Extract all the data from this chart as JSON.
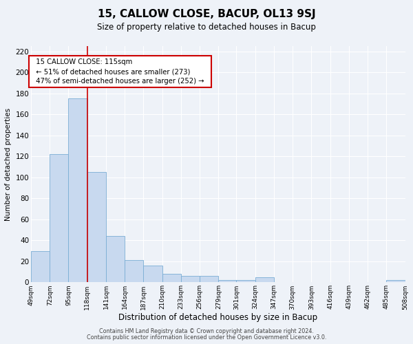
{
  "title": "15, CALLOW CLOSE, BACUP, OL13 9SJ",
  "subtitle": "Size of property relative to detached houses in Bacup",
  "xlabel": "Distribution of detached houses by size in Bacup",
  "ylabel": "Number of detached properties",
  "bar_values": [
    30,
    122,
    175,
    105,
    44,
    21,
    16,
    8,
    6,
    6,
    2,
    2,
    5,
    0,
    0,
    0,
    0,
    0,
    0,
    2,
    0
  ],
  "bin_edges": [
    49,
    72,
    95,
    118,
    141,
    164,
    187,
    210,
    233,
    256,
    279,
    301,
    324,
    347,
    370,
    393,
    416,
    439,
    462,
    485,
    508
  ],
  "tick_labels": [
    "49sqm",
    "72sqm",
    "95sqm",
    "118sqm",
    "141sqm",
    "164sqm",
    "187sqm",
    "210sqm",
    "233sqm",
    "256sqm",
    "279sqm",
    "301sqm",
    "324sqm",
    "347sqm",
    "370sqm",
    "393sqm",
    "416sqm",
    "439sqm",
    "462sqm",
    "485sqm",
    "508sqm"
  ],
  "bar_color": "#c8d9ef",
  "bar_edge_color": "#7aadd4",
  "vline_x": 118,
  "vline_color": "#cc0000",
  "ylim": [
    0,
    225
  ],
  "yticks": [
    0,
    20,
    40,
    60,
    80,
    100,
    120,
    140,
    160,
    180,
    200,
    220
  ],
  "annotation_title": "15 CALLOW CLOSE: 115sqm",
  "annotation_line1": "← 51% of detached houses are smaller (273)",
  "annotation_line2": "47% of semi-detached houses are larger (252) →",
  "annotation_box_color": "#ffffff",
  "annotation_box_edge": "#cc0000",
  "footer_line1": "Contains HM Land Registry data © Crown copyright and database right 2024.",
  "footer_line2": "Contains public sector information licensed under the Open Government Licence v3.0.",
  "background_color": "#eef2f8",
  "grid_color": "#ffffff"
}
